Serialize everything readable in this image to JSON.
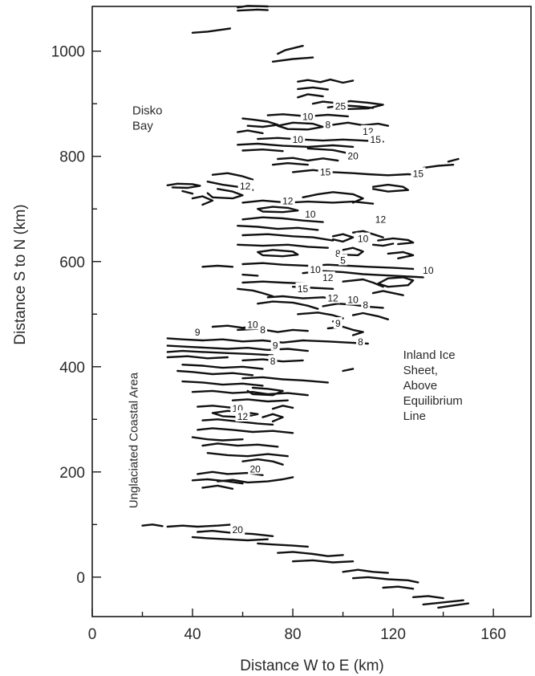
{
  "colors": {
    "ink": "#111111",
    "background": "#ffffff"
  },
  "chart_data": {
    "type": "contour",
    "xlabel": "Distance W to E (km)",
    "ylabel": "Distance S to N (km)",
    "xlim": [
      0,
      175
    ],
    "ylim": [
      -75,
      1085
    ],
    "x_ticks": [
      0,
      40,
      80,
      120,
      160
    ],
    "y_ticks": [
      0,
      200,
      400,
      600,
      800,
      1000
    ],
    "grid": false,
    "annotations": [
      {
        "lines": [
          "Disko",
          "Bay"
        ],
        "x": 16,
        "y": 880
      },
      {
        "lines": [
          "Inland Ice",
          "Sheet,",
          "Above",
          "Equilibrium",
          "Line"
        ],
        "x": 124,
        "y": 415
      },
      {
        "lines": [
          "Unglaciated Coastal Area"
        ],
        "x": 18,
        "y": 260,
        "rotated": true
      }
    ],
    "contour_labels": [
      {
        "text": "25",
        "x": 99,
        "y": 895
      },
      {
        "text": "10",
        "x": 86,
        "y": 875
      },
      {
        "text": "8",
        "x": 94,
        "y": 860
      },
      {
        "text": "12",
        "x": 110,
        "y": 847
      },
      {
        "text": "15",
        "x": 113,
        "y": 832
      },
      {
        "text": "10",
        "x": 82,
        "y": 832
      },
      {
        "text": "20",
        "x": 104,
        "y": 800
      },
      {
        "text": "15",
        "x": 93,
        "y": 770
      },
      {
        "text": "15",
        "x": 130,
        "y": 767
      },
      {
        "text": "12",
        "x": 61,
        "y": 743
      },
      {
        "text": "12",
        "x": 78,
        "y": 715
      },
      {
        "text": "10",
        "x": 87,
        "y": 690
      },
      {
        "text": "12",
        "x": 115,
        "y": 680
      },
      {
        "text": "10",
        "x": 108,
        "y": 643
      },
      {
        "text": "8",
        "x": 98,
        "y": 615
      },
      {
        "text": "5",
        "x": 100,
        "y": 602
      },
      {
        "text": "10",
        "x": 89,
        "y": 584
      },
      {
        "text": "10",
        "x": 134,
        "y": 583
      },
      {
        "text": "12",
        "x": 94,
        "y": 569
      },
      {
        "text": "15",
        "x": 84,
        "y": 548
      },
      {
        "text": "12",
        "x": 96,
        "y": 530
      },
      {
        "text": "10",
        "x": 104,
        "y": 527
      },
      {
        "text": "8",
        "x": 109,
        "y": 517
      },
      {
        "text": "9",
        "x": 98,
        "y": 482
      },
      {
        "text": "10",
        "x": 64,
        "y": 480
      },
      {
        "text": "8",
        "x": 68,
        "y": 470
      },
      {
        "text": "9",
        "x": 42,
        "y": 465
      },
      {
        "text": "8",
        "x": 107,
        "y": 447
      },
      {
        "text": "9",
        "x": 73,
        "y": 440
      },
      {
        "text": "8",
        "x": 72,
        "y": 410
      },
      {
        "text": "10",
        "x": 58,
        "y": 320
      },
      {
        "text": "12",
        "x": 60,
        "y": 305
      },
      {
        "text": "20",
        "x": 65,
        "y": 205
      },
      {
        "text": "20",
        "x": 58,
        "y": 90
      }
    ]
  }
}
